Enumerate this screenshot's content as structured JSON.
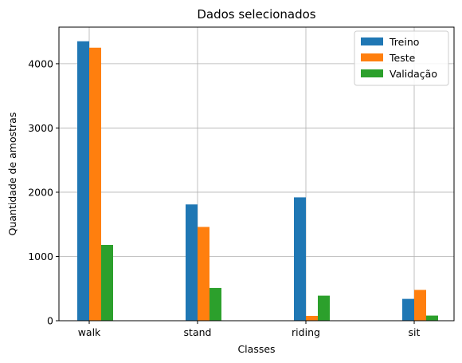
{
  "chart_data": {
    "type": "bar",
    "title": "Dados selecionados",
    "xlabel": "Classes",
    "ylabel": "Quantidade de amostras",
    "categories": [
      "walk",
      "stand",
      "riding",
      "sit"
    ],
    "y_ticks": [
      0,
      1000,
      2000,
      3000,
      4000
    ],
    "ylim": [
      0,
      4570
    ],
    "grid": true,
    "legend_position": "top-right",
    "series": [
      {
        "name": "Treino",
        "color": "#1f77b4",
        "values": [
          4350,
          1810,
          1920,
          340
        ]
      },
      {
        "name": "Teste",
        "color": "#ff7f0e",
        "values": [
          4250,
          1460,
          75,
          480
        ]
      },
      {
        "name": "Validação",
        "color": "#2ca02c",
        "values": [
          1180,
          510,
          390,
          80
        ]
      }
    ]
  }
}
